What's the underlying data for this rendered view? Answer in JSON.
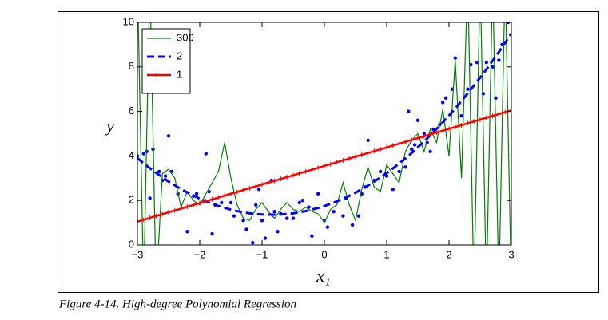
{
  "chart_data": {
    "type": "line",
    "caption": "Figure 4-14. High-degree Polynomial Regression",
    "xlabel": "x₁",
    "ylabel": "y",
    "xlim": [
      -3,
      3
    ],
    "ylim": [
      0,
      10
    ],
    "xticks": [
      {
        "value": -3,
        "label": "−3"
      },
      {
        "value": -2,
        "label": "−2"
      },
      {
        "value": -1,
        "label": "−1"
      },
      0,
      1,
      2,
      3
    ],
    "yticks": [
      0,
      2,
      4,
      6,
      8,
      10
    ],
    "legend": "upper left",
    "x": [
      -3.0,
      -2.9,
      -2.8,
      -2.7,
      -2.6,
      -2.5,
      -2.4,
      -2.3,
      -2.2,
      -2.1,
      -2.0,
      -1.9,
      -1.8,
      -1.7,
      -1.6,
      -1.5,
      -1.4,
      -1.3,
      -1.2,
      -1.1,
      -1.0,
      -0.9,
      -0.8,
      -0.7,
      -0.6,
      -0.5,
      -0.4,
      -0.3,
      -0.2,
      -0.1,
      0.0,
      0.1,
      0.2,
      0.3,
      0.4,
      0.5,
      0.6,
      0.7,
      0.8,
      0.9,
      1.0,
      1.1,
      1.2,
      1.3,
      1.4,
      1.5,
      1.6,
      1.7,
      1.8,
      1.9,
      2.0,
      2.1,
      2.2,
      2.3,
      2.4,
      2.5,
      2.6,
      2.7,
      2.8,
      2.9,
      3.0
    ],
    "series": [
      {
        "name": "300",
        "color": "#008000",
        "linestyle": "solid",
        "marker": "none",
        "values": [
          12,
          -2,
          12,
          -2,
          3.2,
          3.4,
          3.0,
          1.7,
          2.4,
          2.0,
          1.8,
          2.3,
          2.8,
          3.3,
          4.6,
          3.0,
          1.8,
          1.2,
          1.1,
          1.6,
          1.9,
          1.5,
          1.2,
          1.6,
          1.9,
          1.6,
          1.5,
          1.7,
          1.5,
          1.4,
          1.0,
          1.6,
          1.8,
          2.8,
          1.8,
          1.1,
          2.5,
          3.5,
          2.6,
          2.4,
          3.6,
          3.2,
          2.8,
          4.2,
          4.7,
          5.0,
          4.2,
          5.2,
          4.6,
          6.1,
          4.0,
          8.3,
          3.0,
          12,
          -2,
          12,
          -2,
          12,
          -2,
          12,
          -2
        ]
      },
      {
        "name": "2",
        "color": "#0000ff",
        "linestyle": "dashed",
        "marker": "none",
        "values": [
          3.9,
          3.67,
          3.45,
          3.24,
          3.04,
          2.85,
          2.68,
          2.51,
          2.36,
          2.22,
          2.08,
          1.96,
          1.85,
          1.75,
          1.67,
          1.59,
          1.52,
          1.47,
          1.42,
          1.39,
          1.37,
          1.36,
          1.36,
          1.37,
          1.39,
          1.42,
          1.47,
          1.52,
          1.59,
          1.66,
          1.75,
          1.85,
          1.96,
          2.08,
          2.21,
          2.35,
          2.51,
          2.67,
          2.85,
          3.04,
          3.23,
          3.44,
          3.66,
          3.89,
          4.13,
          4.39,
          4.65,
          4.93,
          5.21,
          5.51,
          5.82,
          6.13,
          6.47,
          6.81,
          7.16,
          7.52,
          7.89,
          8.28,
          8.67,
          9.08,
          9.5
        ]
      },
      {
        "name": "1",
        "color": "#ff0000",
        "linestyle": "solid",
        "marker": "+",
        "values": [
          1.05,
          1.13,
          1.22,
          1.3,
          1.38,
          1.47,
          1.55,
          1.63,
          1.72,
          1.8,
          1.88,
          1.97,
          2.05,
          2.13,
          2.22,
          2.3,
          2.38,
          2.47,
          2.55,
          2.63,
          2.72,
          2.8,
          2.88,
          2.97,
          3.05,
          3.13,
          3.22,
          3.3,
          3.38,
          3.47,
          3.55,
          3.63,
          3.72,
          3.8,
          3.88,
          3.97,
          4.05,
          4.13,
          4.22,
          4.3,
          4.38,
          4.47,
          4.55,
          4.63,
          4.72,
          4.8,
          4.88,
          4.97,
          5.05,
          5.13,
          5.22,
          5.3,
          5.38,
          5.47,
          5.55,
          5.63,
          5.72,
          5.8,
          5.88,
          5.97,
          6.05
        ]
      }
    ],
    "scatter": {
      "color": "#0000ff",
      "x": [
        -3,
        -2.9,
        -2.85,
        -2.75,
        -2.8,
        -2.65,
        -2.6,
        -2.55,
        -2.5,
        -2.45,
        -2.35,
        -2.2,
        -2.1,
        -2.05,
        -1.9,
        -1.85,
        -1.75,
        -1.8,
        -1.65,
        -1.5,
        -1.45,
        -1.3,
        -1.25,
        -1.15,
        -1.1,
        -1.05,
        -1.0,
        -0.95,
        -0.85,
        -0.8,
        -0.75,
        -0.7,
        -0.6,
        -0.5,
        -0.4,
        -0.35,
        -0.25,
        -0.2,
        -0.1,
        0,
        0.05,
        0.15,
        0.3,
        0.35,
        0.45,
        0.55,
        0.6,
        0.65,
        0.7,
        0.8,
        0.9,
        1.0,
        1.1,
        1.2,
        1.3,
        1.35,
        1.4,
        1.45,
        1.5,
        1.6,
        1.65,
        1.7,
        1.75,
        1.85,
        1.9,
        1.95,
        2.05,
        2.1,
        2.2,
        2.3,
        2.35,
        2.45,
        2.55,
        2.6,
        2.7,
        2.75,
        2.8,
        2.85,
        2.95
      ],
      "y": [
        4.0,
        4.1,
        4.2,
        4.3,
        2.1,
        3.3,
        2.9,
        3.1,
        4.9,
        3.3,
        2.3,
        0.6,
        2.2,
        2.3,
        4.1,
        2.4,
        1.8,
        0.5,
        1.9,
        1.9,
        1.3,
        1.1,
        0.7,
        0.1,
        1.8,
        2.5,
        1.1,
        0.3,
        2.9,
        1.5,
        0.6,
        1.4,
        1.2,
        1.2,
        1.9,
        2.0,
        1.7,
        0.4,
        2.3,
        1.1,
        0.8,
        1.5,
        1.3,
        2.1,
        0.9,
        1.3,
        2.3,
        2.6,
        4.7,
        2.9,
        3.3,
        3.1,
        2.5,
        3.3,
        3.5,
        6.0,
        4.3,
        4.5,
        5.6,
        5.0,
        4.6,
        4.2,
        5.2,
        5.4,
        6.4,
        6.6,
        7.0,
        8.4,
        5.8,
        7.0,
        8.1,
        8.2,
        6.8,
        8.2,
        8.0,
        6.6,
        8.3,
        9.0,
        10.0
      ]
    }
  }
}
